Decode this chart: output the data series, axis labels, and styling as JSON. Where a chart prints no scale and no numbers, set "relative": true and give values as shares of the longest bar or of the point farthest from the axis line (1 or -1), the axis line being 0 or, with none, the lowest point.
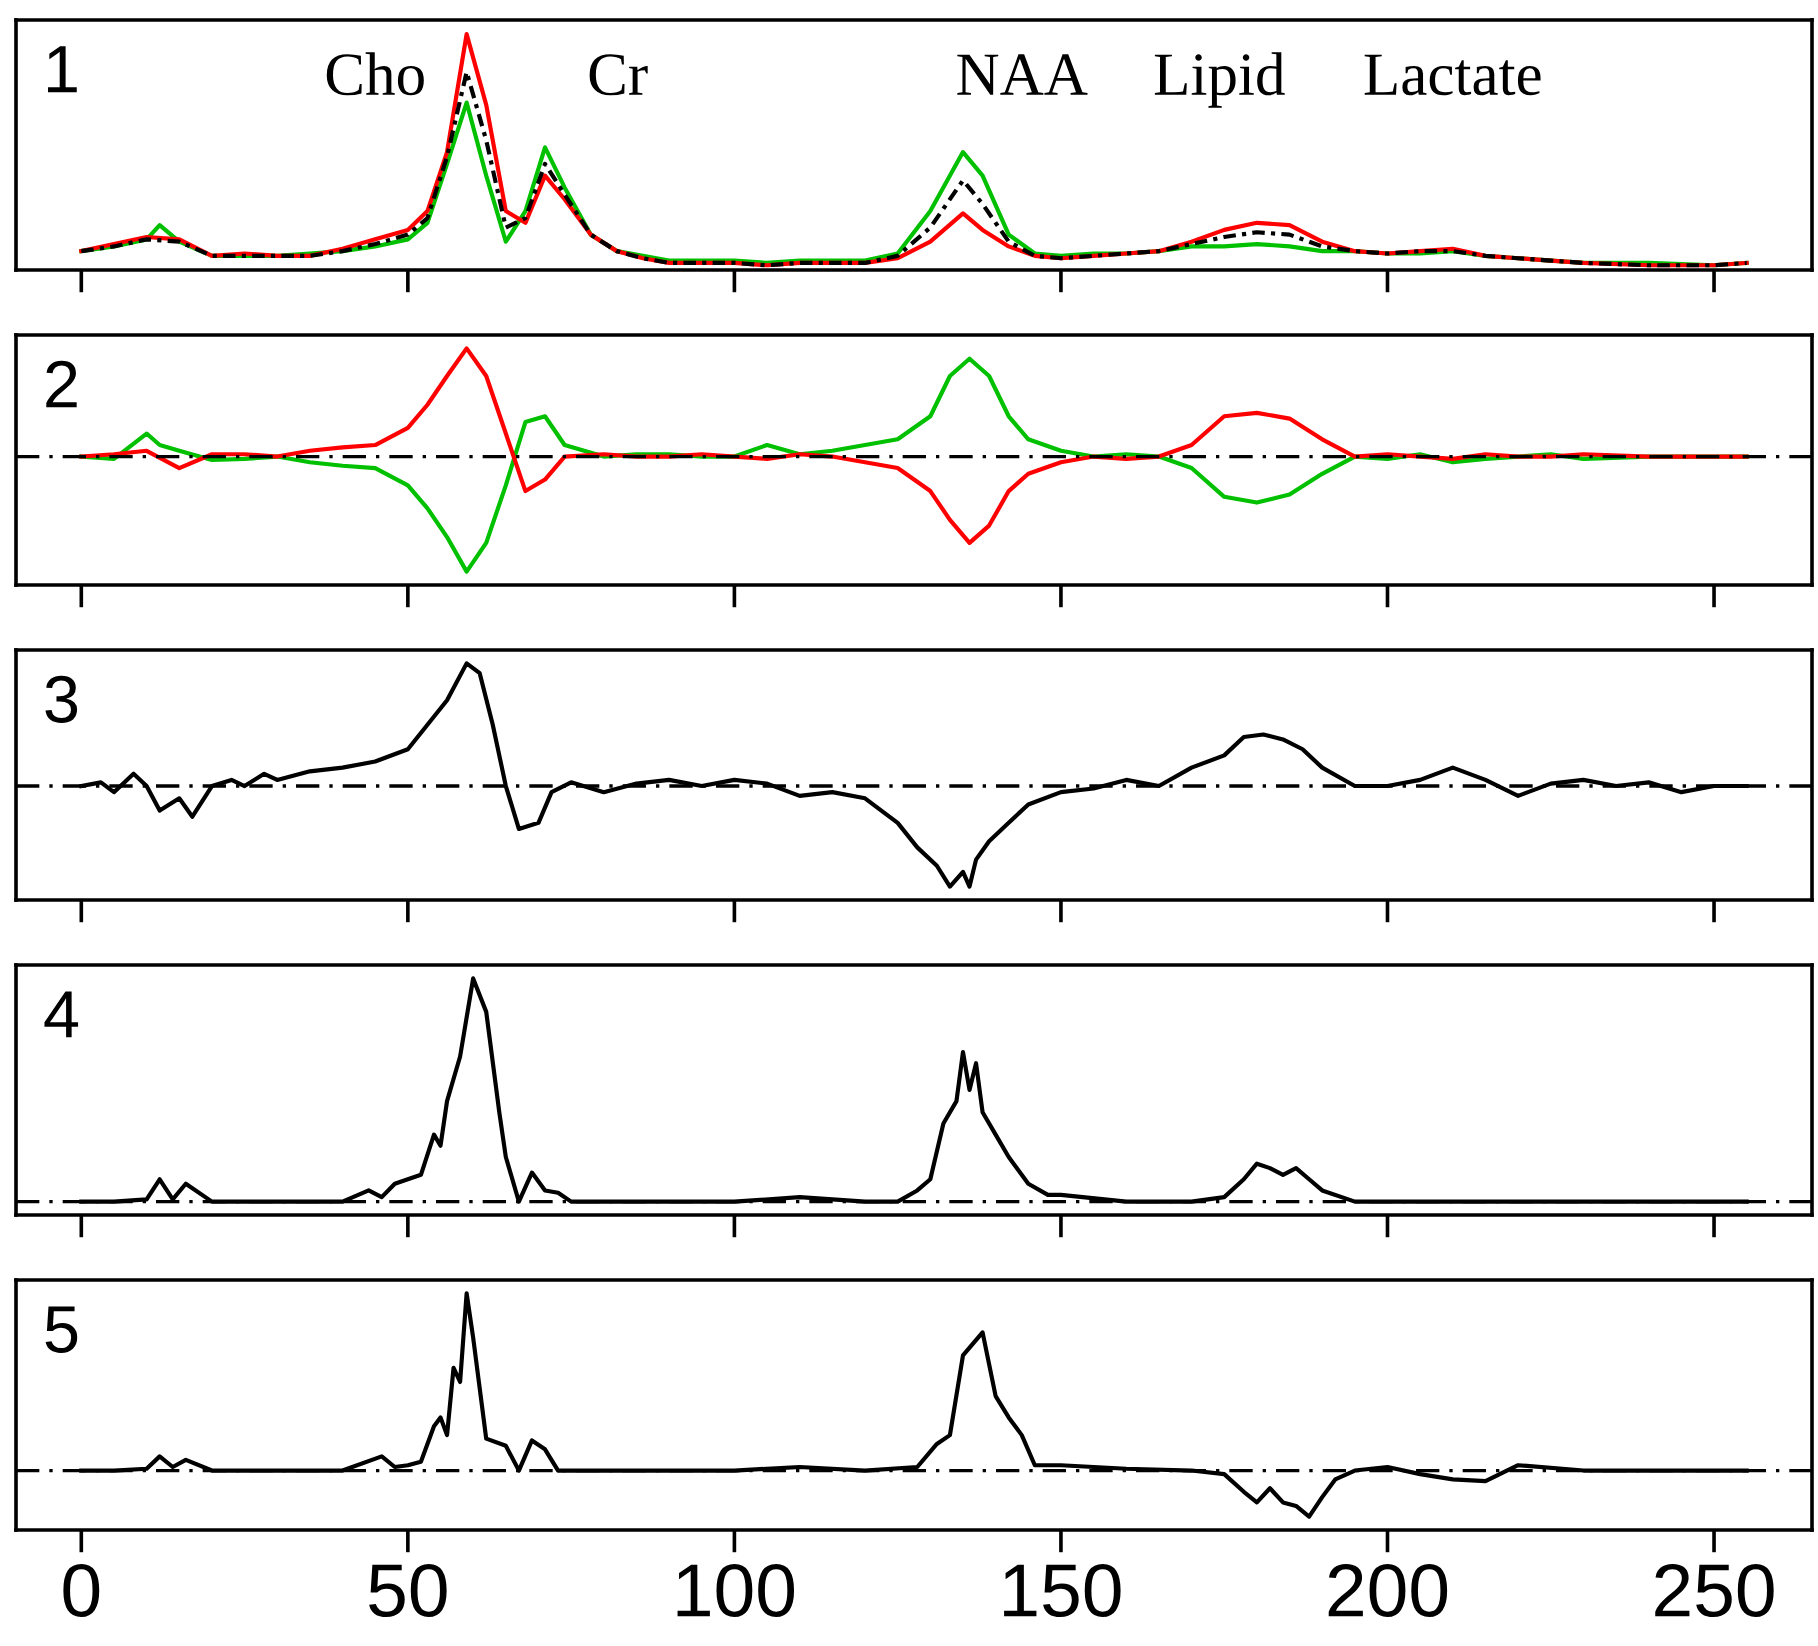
{
  "chart_data": [
    {
      "type": "line",
      "title": "1",
      "relative": true,
      "xlim": [
        -10,
        265
      ],
      "xticks": [
        0,
        50,
        100,
        150,
        200,
        250
      ],
      "tick_labels": false,
      "grid": false,
      "annotations": [
        "Cho",
        "Cr",
        "NAA",
        "Lipid",
        "Lactate"
      ],
      "series": [
        {
          "color": "#000000",
          "line_style": "dashdot",
          "x": [
            0,
            5,
            10,
            15,
            20,
            25,
            30,
            35,
            40,
            45,
            50,
            53,
            56,
            59,
            62,
            65,
            68,
            71,
            74,
            78,
            82,
            86,
            90,
            95,
            100,
            105,
            110,
            115,
            120,
            125,
            130,
            135,
            138,
            142,
            146,
            150,
            155,
            160,
            165,
            170,
            175,
            180,
            185,
            190,
            195,
            200,
            205,
            210,
            215,
            220,
            225,
            230,
            240,
            250,
            255
          ],
          "values": [
            0.08,
            0.1,
            0.13,
            0.12,
            0.06,
            0.06,
            0.06,
            0.06,
            0.08,
            0.11,
            0.15,
            0.22,
            0.48,
            0.84,
            0.55,
            0.18,
            0.22,
            0.45,
            0.32,
            0.15,
            0.08,
            0.05,
            0.03,
            0.03,
            0.03,
            0.02,
            0.03,
            0.03,
            0.03,
            0.06,
            0.18,
            0.38,
            0.28,
            0.12,
            0.06,
            0.05,
            0.06,
            0.07,
            0.08,
            0.11,
            0.14,
            0.16,
            0.15,
            0.1,
            0.08,
            0.07,
            0.08,
            0.08,
            0.06,
            0.05,
            0.04,
            0.03,
            0.02,
            0.02,
            0.03
          ]
        },
        {
          "color": "#00c000",
          "line_style": "solid",
          "x": [
            0,
            5,
            10,
            12,
            15,
            20,
            25,
            30,
            35,
            40,
            45,
            50,
            53,
            56,
            59,
            62,
            65,
            68,
            71,
            74,
            78,
            82,
            86,
            90,
            95,
            100,
            105,
            110,
            115,
            120,
            125,
            130,
            135,
            138,
            142,
            146,
            150,
            155,
            160,
            165,
            170,
            175,
            180,
            185,
            190,
            195,
            200,
            205,
            210,
            215,
            220,
            225,
            230,
            240,
            250,
            255
          ],
          "values": [
            0.08,
            0.1,
            0.13,
            0.19,
            0.12,
            0.06,
            0.06,
            0.06,
            0.07,
            0.08,
            0.1,
            0.13,
            0.2,
            0.45,
            0.71,
            0.4,
            0.12,
            0.25,
            0.52,
            0.35,
            0.15,
            0.08,
            0.06,
            0.04,
            0.04,
            0.04,
            0.03,
            0.04,
            0.04,
            0.04,
            0.07,
            0.25,
            0.5,
            0.4,
            0.15,
            0.07,
            0.06,
            0.07,
            0.07,
            0.08,
            0.1,
            0.1,
            0.11,
            0.1,
            0.08,
            0.08,
            0.07,
            0.07,
            0.08,
            0.06,
            0.05,
            0.04,
            0.03,
            0.03,
            0.02,
            0.03
          ]
        },
        {
          "color": "#ff0000",
          "line_style": "solid",
          "x": [
            0,
            5,
            10,
            15,
            20,
            25,
            30,
            35,
            40,
            45,
            50,
            53,
            56,
            59,
            62,
            65,
            68,
            71,
            74,
            78,
            82,
            86,
            90,
            95,
            100,
            105,
            110,
            115,
            120,
            125,
            130,
            135,
            138,
            142,
            146,
            150,
            155,
            160,
            165,
            170,
            175,
            180,
            185,
            190,
            195,
            200,
            205,
            210,
            215,
            220,
            225,
            230,
            240,
            250,
            255
          ],
          "values": [
            0.08,
            0.11,
            0.14,
            0.13,
            0.06,
            0.07,
            0.06,
            0.06,
            0.09,
            0.13,
            0.17,
            0.25,
            0.5,
            1.0,
            0.7,
            0.25,
            0.2,
            0.4,
            0.3,
            0.15,
            0.08,
            0.05,
            0.03,
            0.03,
            0.03,
            0.02,
            0.03,
            0.03,
            0.03,
            0.05,
            0.12,
            0.24,
            0.17,
            0.1,
            0.06,
            0.05,
            0.06,
            0.07,
            0.08,
            0.12,
            0.17,
            0.2,
            0.19,
            0.12,
            0.08,
            0.07,
            0.08,
            0.09,
            0.06,
            0.05,
            0.04,
            0.03,
            0.02,
            0.02,
            0.03
          ]
        }
      ]
    },
    {
      "type": "line",
      "title": "2",
      "relative": true,
      "xlim": [
        -10,
        265
      ],
      "xticks": [
        0,
        50,
        100,
        150,
        200,
        250
      ],
      "tick_labels": false,
      "grid": false,
      "ref_lines": [
        {
          "axis": "y",
          "value": 0,
          "color": "#000000",
          "line_style": "dashdot"
        }
      ],
      "series": [
        {
          "color": "#00c000",
          "line_style": "solid",
          "x": [
            0,
            5,
            10,
            12,
            15,
            20,
            25,
            30,
            35,
            40,
            45,
            50,
            53,
            56,
            59,
            62,
            65,
            68,
            71,
            74,
            80,
            85,
            90,
            95,
            100,
            105,
            110,
            115,
            120,
            125,
            130,
            133,
            136,
            139,
            142,
            145,
            150,
            155,
            160,
            165,
            170,
            175,
            180,
            185,
            190,
            195,
            200,
            205,
            210,
            215,
            220,
            225,
            230,
            240,
            250,
            255
          ],
          "values": [
            0,
            -0.02,
            0.2,
            0.1,
            0.05,
            -0.03,
            -0.02,
            0,
            -0.05,
            -0.08,
            -0.1,
            -0.25,
            -0.45,
            -0.7,
            -1.0,
            -0.75,
            -0.25,
            0.3,
            0.35,
            0.1,
            0,
            0.02,
            0.02,
            0,
            0,
            0.1,
            0.02,
            0.05,
            0.1,
            0.15,
            0.35,
            0.7,
            0.85,
            0.7,
            0.35,
            0.15,
            0.05,
            0,
            0.02,
            0,
            -0.1,
            -0.35,
            -0.4,
            -0.33,
            -0.15,
            0,
            -0.02,
            0.02,
            -0.05,
            -0.02,
            0,
            0.02,
            -0.02,
            0,
            0,
            0
          ]
        },
        {
          "color": "#ff0000",
          "line_style": "solid",
          "x": [
            0,
            5,
            10,
            15,
            20,
            25,
            30,
            35,
            40,
            45,
            50,
            53,
            56,
            59,
            62,
            65,
            68,
            71,
            74,
            80,
            85,
            90,
            95,
            100,
            105,
            110,
            115,
            120,
            125,
            130,
            133,
            136,
            139,
            142,
            145,
            150,
            155,
            160,
            165,
            170,
            175,
            180,
            185,
            190,
            195,
            200,
            205,
            210,
            215,
            220,
            225,
            230,
            240,
            250,
            255
          ],
          "values": [
            0,
            0.02,
            0.05,
            -0.1,
            0.02,
            0.02,
            0,
            0.05,
            0.08,
            0.1,
            0.25,
            0.45,
            0.7,
            0.94,
            0.7,
            0.2,
            -0.3,
            -0.2,
            0,
            0.02,
            0,
            0,
            0.02,
            0,
            -0.02,
            0.02,
            0,
            -0.05,
            -0.1,
            -0.3,
            -0.55,
            -0.75,
            -0.6,
            -0.3,
            -0.15,
            -0.05,
            0,
            -0.02,
            0,
            0.1,
            0.35,
            0.38,
            0.33,
            0.15,
            0,
            0.02,
            0,
            -0.02,
            0.02,
            0,
            0,
            0.02,
            0,
            0,
            0
          ]
        }
      ]
    },
    {
      "type": "line",
      "title": "3",
      "relative": true,
      "xlim": [
        -10,
        265
      ],
      "xticks": [
        0,
        50,
        100,
        150,
        200,
        250
      ],
      "tick_labels": false,
      "grid": false,
      "ref_lines": [
        {
          "axis": "y",
          "value": 0,
          "color": "#000000",
          "line_style": "dashdot"
        }
      ],
      "series": [
        {
          "color": "#000000",
          "line_style": "solid",
          "x": [
            0,
            3,
            5,
            8,
            10,
            12,
            15,
            17,
            20,
            23,
            25,
            28,
            30,
            35,
            40,
            45,
            50,
            53,
            56,
            59,
            61,
            63,
            65,
            67,
            70,
            72,
            75,
            80,
            85,
            90,
            95,
            100,
            105,
            110,
            115,
            120,
            125,
            128,
            131,
            133,
            135,
            136,
            137,
            139,
            142,
            145,
            150,
            155,
            160,
            165,
            170,
            175,
            178,
            181,
            184,
            187,
            190,
            195,
            200,
            205,
            210,
            215,
            220,
            225,
            230,
            235,
            240,
            245,
            250,
            255
          ],
          "values": [
            0,
            0.03,
            -0.05,
            0.1,
            0,
            -0.2,
            -0.1,
            -0.25,
            0,
            0.05,
            0,
            0.1,
            0.05,
            0.12,
            0.15,
            0.2,
            0.3,
            0.5,
            0.7,
            1.0,
            0.92,
            0.5,
            0,
            -0.35,
            -0.3,
            -0.05,
            0.03,
            -0.05,
            0.02,
            0.05,
            0,
            0.05,
            0.02,
            -0.08,
            -0.05,
            -0.1,
            -0.3,
            -0.5,
            -0.65,
            -0.82,
            -0.7,
            -0.82,
            -0.6,
            -0.45,
            -0.3,
            -0.15,
            -0.05,
            -0.02,
            0.05,
            0,
            0.15,
            0.25,
            0.4,
            0.42,
            0.38,
            0.3,
            0.15,
            0,
            0,
            0.05,
            0.15,
            0.05,
            -0.08,
            0.02,
            0.05,
            0,
            0.03,
            -0.05,
            0,
            0
          ]
        }
      ]
    },
    {
      "type": "line",
      "title": "4",
      "relative": true,
      "xlim": [
        -10,
        265
      ],
      "xticks": [
        0,
        50,
        100,
        150,
        200,
        250
      ],
      "tick_labels": false,
      "grid": false,
      "ref_lines": [
        {
          "axis": "y",
          "value": 0,
          "color": "#000000",
          "line_style": "dashdot"
        }
      ],
      "series": [
        {
          "color": "#000000",
          "line_style": "solid",
          "x": [
            0,
            5,
            10,
            12,
            14,
            16,
            20,
            30,
            40,
            44,
            46,
            48,
            50,
            52,
            54,
            55,
            56,
            58,
            60,
            62,
            64,
            65,
            67,
            69,
            71,
            73,
            75,
            80,
            100,
            110,
            120,
            125,
            128,
            130,
            132,
            134,
            135,
            136,
            137,
            138,
            140,
            142,
            145,
            148,
            150,
            160,
            170,
            175,
            178,
            180,
            182,
            184,
            186,
            188,
            190,
            195,
            200,
            250,
            255
          ],
          "values": [
            0,
            0,
            0.01,
            0.1,
            0.01,
            0.08,
            0,
            0,
            0,
            0.05,
            0.02,
            0.08,
            0.1,
            0.12,
            0.3,
            0.25,
            0.45,
            0.65,
            1.0,
            0.85,
            0.4,
            0.2,
            0.0,
            0.13,
            0.05,
            0.04,
            0,
            0,
            0,
            0.02,
            0,
            0,
            0.05,
            0.1,
            0.35,
            0.45,
            0.67,
            0.5,
            0.62,
            0.4,
            0.3,
            0.2,
            0.08,
            0.03,
            0.03,
            0,
            0,
            0.02,
            0.1,
            0.17,
            0.15,
            0.12,
            0.15,
            0.1,
            0.05,
            0,
            0,
            0,
            0
          ]
        }
      ]
    },
    {
      "type": "line",
      "title": "5",
      "relative": true,
      "xlim": [
        -10,
        265
      ],
      "xticks": [
        0,
        50,
        100,
        150,
        200,
        250
      ],
      "tick_labels": "x",
      "grid": false,
      "ref_lines": [
        {
          "axis": "y",
          "value": 0,
          "color": "#000000",
          "line_style": "dashdot"
        }
      ],
      "series": [
        {
          "color": "#000000",
          "line_style": "solid",
          "x": [
            0,
            5,
            10,
            12,
            14,
            16,
            20,
            30,
            40,
            46,
            48,
            50,
            52,
            54,
            55,
            56,
            57,
            58,
            59,
            60,
            62,
            65,
            67,
            69,
            71,
            73,
            80,
            100,
            110,
            120,
            128,
            131,
            133,
            135,
            138,
            140,
            142,
            144,
            146,
            150,
            160,
            170,
            175,
            178,
            180,
            182,
            184,
            186,
            188,
            190,
            192,
            195,
            200,
            205,
            210,
            215,
            220,
            230,
            240,
            250,
            255
          ],
          "values": [
            0,
            0,
            0.01,
            0.08,
            0.02,
            0.06,
            0,
            0,
            0,
            0.08,
            0.02,
            0.03,
            0.05,
            0.25,
            0.3,
            0.2,
            0.58,
            0.5,
            1.0,
            0.75,
            0.18,
            0.14,
            0.0,
            0.17,
            0.12,
            0.0,
            0,
            0,
            0.02,
            0,
            0.02,
            0.15,
            0.2,
            0.65,
            0.78,
            0.42,
            0.3,
            0.2,
            0.03,
            0.03,
            0.01,
            0,
            -0.02,
            -0.12,
            -0.18,
            -0.1,
            -0.18,
            -0.2,
            -0.26,
            -0.15,
            -0.05,
            0.0,
            0.02,
            -0.02,
            -0.05,
            -0.06,
            0.03,
            0,
            0,
            0,
            0
          ]
        }
      ]
    }
  ]
}
